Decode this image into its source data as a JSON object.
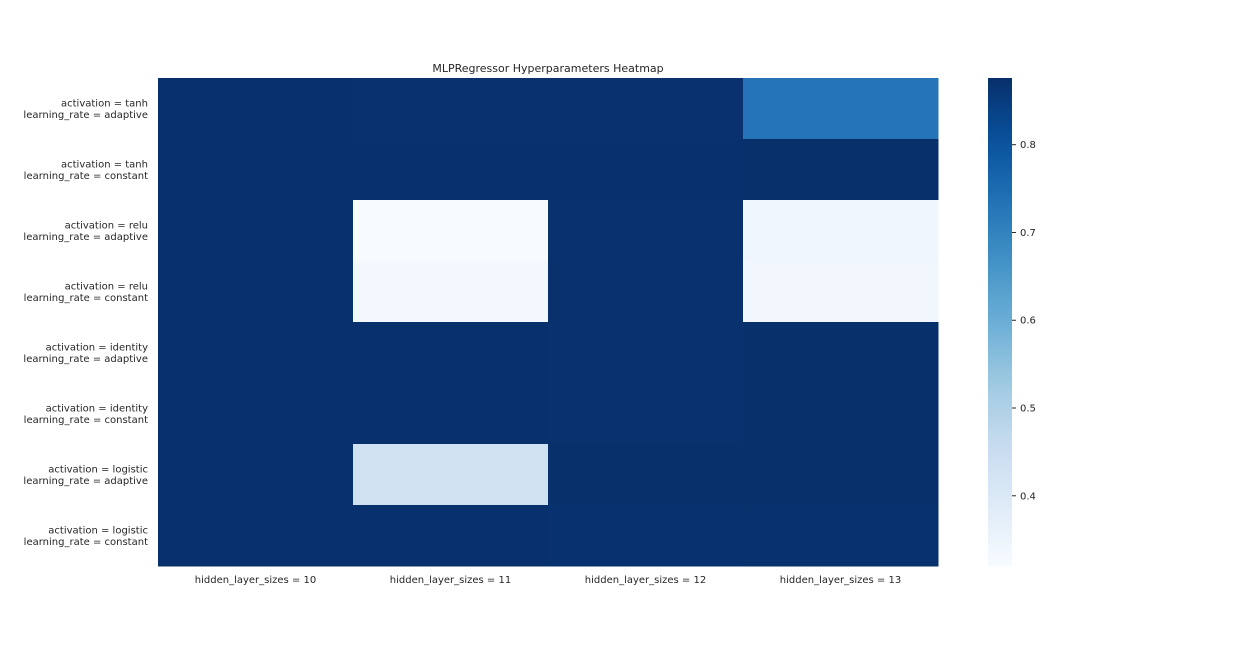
{
  "chart_data": {
    "type": "heatmap",
    "title": "MLPRegressor Hyperparameters Heatmap",
    "xlabel": "",
    "ylabel": "",
    "columns": [
      "hidden_layer_sizes = 10",
      "hidden_layer_sizes = 11",
      "hidden_layer_sizes = 12",
      "hidden_layer_sizes = 13"
    ],
    "rows": [
      [
        "activation = tanh",
        "learning_rate = adaptive"
      ],
      [
        "activation = tanh",
        "learning_rate = constant"
      ],
      [
        "activation = relu",
        "learning_rate = adaptive"
      ],
      [
        "activation = relu",
        "learning_rate = constant"
      ],
      [
        "activation = identity",
        "learning_rate = adaptive"
      ],
      [
        "activation = identity",
        "learning_rate = constant"
      ],
      [
        "activation = logistic",
        "learning_rate = adaptive"
      ],
      [
        "activation = logistic",
        "learning_rate = constant"
      ]
    ],
    "values": [
      [
        0.875,
        0.873,
        0.873,
        0.73
      ],
      [
        0.875,
        0.875,
        0.875,
        0.876
      ],
      [
        0.875,
        0.32,
        0.873,
        0.34
      ],
      [
        0.875,
        0.335,
        0.873,
        0.337
      ],
      [
        0.875,
        0.875,
        0.873,
        0.876
      ],
      [
        0.875,
        0.875,
        0.873,
        0.876
      ],
      [
        0.875,
        0.43,
        0.874,
        0.876
      ],
      [
        0.875,
        0.875,
        0.871,
        0.872
      ]
    ],
    "colorbar": {
      "min": 0.32,
      "max": 0.876,
      "ticks": [
        0.4,
        0.5,
        0.6,
        0.7,
        0.8
      ],
      "colormap": "Blues",
      "colormap_stops": [
        "#f7fbff",
        "#deebf7",
        "#c6dbef",
        "#9ecae1",
        "#6baed6",
        "#4292c6",
        "#2171b5",
        "#08519c",
        "#08306b"
      ]
    }
  }
}
